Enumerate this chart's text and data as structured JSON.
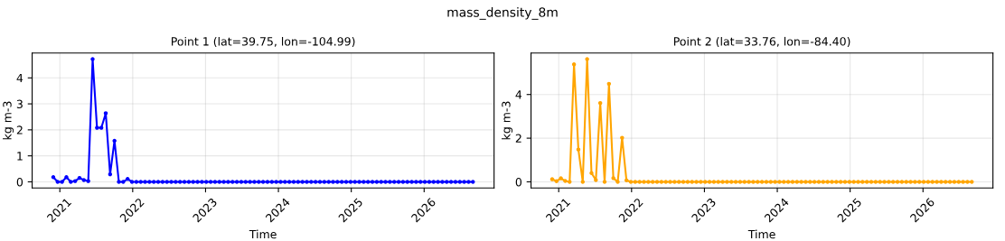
{
  "chart_data": [
    {
      "type": "line",
      "title": "Point 1 (lat=39.75, lon=-104.99)",
      "xlabel": "Time",
      "ylabel": "kg m-3",
      "annotations": [
        "mass_density_8m"
      ],
      "x": [
        2020.91,
        2020.97,
        2021.03,
        2021.09,
        2021.15,
        2021.21,
        2021.27,
        2021.33,
        2021.39,
        2021.45,
        2021.51,
        2021.57,
        2021.63,
        2021.69,
        2021.75,
        2021.81,
        2021.87,
        2021.93,
        2021.99,
        2022.05,
        2022.11,
        2022.17,
        2022.23,
        2022.29,
        2022.35,
        2022.41,
        2022.47,
        2022.53,
        2022.59,
        2022.65,
        2022.71,
        2022.77,
        2022.83,
        2022.89,
        2022.95,
        2023.01,
        2023.07,
        2023.13,
        2023.19,
        2023.25,
        2023.31,
        2023.37,
        2023.43,
        2023.49,
        2023.55,
        2023.61,
        2023.67,
        2023.73,
        2023.79,
        2023.85,
        2023.91,
        2023.97,
        2024.03,
        2024.09,
        2024.15,
        2024.21,
        2024.27,
        2024.33,
        2024.39,
        2024.45,
        2024.51,
        2024.57,
        2024.63,
        2024.69,
        2024.75,
        2024.81,
        2024.87,
        2024.93,
        2024.99,
        2025.05,
        2025.11,
        2025.17,
        2025.23,
        2025.29,
        2025.35,
        2025.41,
        2025.47,
        2025.53,
        2025.59,
        2025.65,
        2025.71,
        2025.77,
        2025.83,
        2025.89,
        2025.95,
        2026.01,
        2026.07,
        2026.13,
        2026.19,
        2026.25,
        2026.31,
        2026.37,
        2026.43,
        2026.49,
        2026.55,
        2026.61,
        2026.67
      ],
      "series": [
        {
          "color": "#0000ff",
          "values": [
            0.18,
            0,
            0,
            0.18,
            0,
            0.03,
            0.15,
            0.07,
            0.03,
            4.72,
            2.08,
            2.08,
            2.64,
            0.29,
            1.58,
            0,
            0,
            0.11,
            0,
            0,
            0,
            0,
            0,
            0,
            0,
            0,
            0,
            0,
            0,
            0,
            0,
            0,
            0,
            0,
            0,
            0,
            0,
            0,
            0,
            0,
            0,
            0,
            0,
            0,
            0,
            0,
            0,
            0,
            0,
            0,
            0,
            0,
            0,
            0,
            0,
            0,
            0,
            0,
            0,
            0,
            0,
            0,
            0,
            0,
            0,
            0,
            0,
            0,
            0,
            0,
            0,
            0,
            0,
            0,
            0,
            0,
            0,
            0,
            0,
            0,
            0,
            0,
            0,
            0,
            0,
            0,
            0,
            0,
            0,
            0,
            0,
            0,
            0,
            0,
            0,
            0,
            0
          ]
        }
      ],
      "xlim": [
        2020.62,
        2026.96
      ],
      "xticks": [
        2021,
        2022,
        2023,
        2024,
        2025,
        2026
      ],
      "ylim": [
        -0.236,
        4.956
      ],
      "yticks": [
        0,
        1,
        2,
        3,
        4
      ],
      "grid": true,
      "marker": "circle",
      "line_style": "solid"
    },
    {
      "type": "line",
      "title": "Point 2 (lat=33.76, lon=-84.40)",
      "xlabel": "Time",
      "ylabel": "kg m-3",
      "x": [
        2020.91,
        2020.97,
        2021.03,
        2021.09,
        2021.15,
        2021.21,
        2021.27,
        2021.33,
        2021.39,
        2021.45,
        2021.51,
        2021.57,
        2021.63,
        2021.69,
        2021.75,
        2021.81,
        2021.87,
        2021.93,
        2021.99,
        2022.05,
        2022.11,
        2022.17,
        2022.23,
        2022.29,
        2022.35,
        2022.41,
        2022.47,
        2022.53,
        2022.59,
        2022.65,
        2022.71,
        2022.77,
        2022.83,
        2022.89,
        2022.95,
        2023.01,
        2023.07,
        2023.13,
        2023.19,
        2023.25,
        2023.31,
        2023.37,
        2023.43,
        2023.49,
        2023.55,
        2023.61,
        2023.67,
        2023.73,
        2023.79,
        2023.85,
        2023.91,
        2023.97,
        2024.03,
        2024.09,
        2024.15,
        2024.21,
        2024.27,
        2024.33,
        2024.39,
        2024.45,
        2024.51,
        2024.57,
        2024.63,
        2024.69,
        2024.75,
        2024.81,
        2024.87,
        2024.93,
        2024.99,
        2025.05,
        2025.11,
        2025.17,
        2025.23,
        2025.29,
        2025.35,
        2025.41,
        2025.47,
        2025.53,
        2025.59,
        2025.65,
        2025.71,
        2025.77,
        2025.83,
        2025.89,
        2025.95,
        2026.01,
        2026.07,
        2026.13,
        2026.19,
        2026.25,
        2026.31,
        2026.37,
        2026.43,
        2026.49,
        2026.55,
        2026.61,
        2026.67
      ],
      "series": [
        {
          "color": "#ffa500",
          "values": [
            0.12,
            0.03,
            0.16,
            0.04,
            0,
            5.38,
            1.48,
            0,
            5.62,
            0.4,
            0.08,
            3.61,
            0,
            4.49,
            0.17,
            0,
            2.02,
            0.07,
            0,
            0,
            0,
            0,
            0,
            0,
            0,
            0,
            0,
            0,
            0,
            0,
            0,
            0,
            0,
            0,
            0,
            0,
            0,
            0,
            0,
            0,
            0,
            0,
            0,
            0,
            0,
            0,
            0,
            0,
            0,
            0,
            0,
            0,
            0,
            0,
            0,
            0,
            0,
            0,
            0,
            0,
            0,
            0,
            0,
            0,
            0,
            0,
            0,
            0,
            0,
            0,
            0,
            0,
            0,
            0,
            0,
            0,
            0,
            0,
            0,
            0,
            0,
            0,
            0,
            0,
            0,
            0,
            0,
            0,
            0,
            0,
            0,
            0,
            0,
            0,
            0,
            0,
            0
          ]
        }
      ],
      "xlim": [
        2020.62,
        2026.96
      ],
      "xticks": [
        2021,
        2022,
        2023,
        2024,
        2025,
        2026
      ],
      "ylim": [
        -0.281,
        5.901
      ],
      "yticks": [
        0,
        2,
        4
      ],
      "grid": true,
      "marker": "circle",
      "line_style": "solid"
    }
  ]
}
